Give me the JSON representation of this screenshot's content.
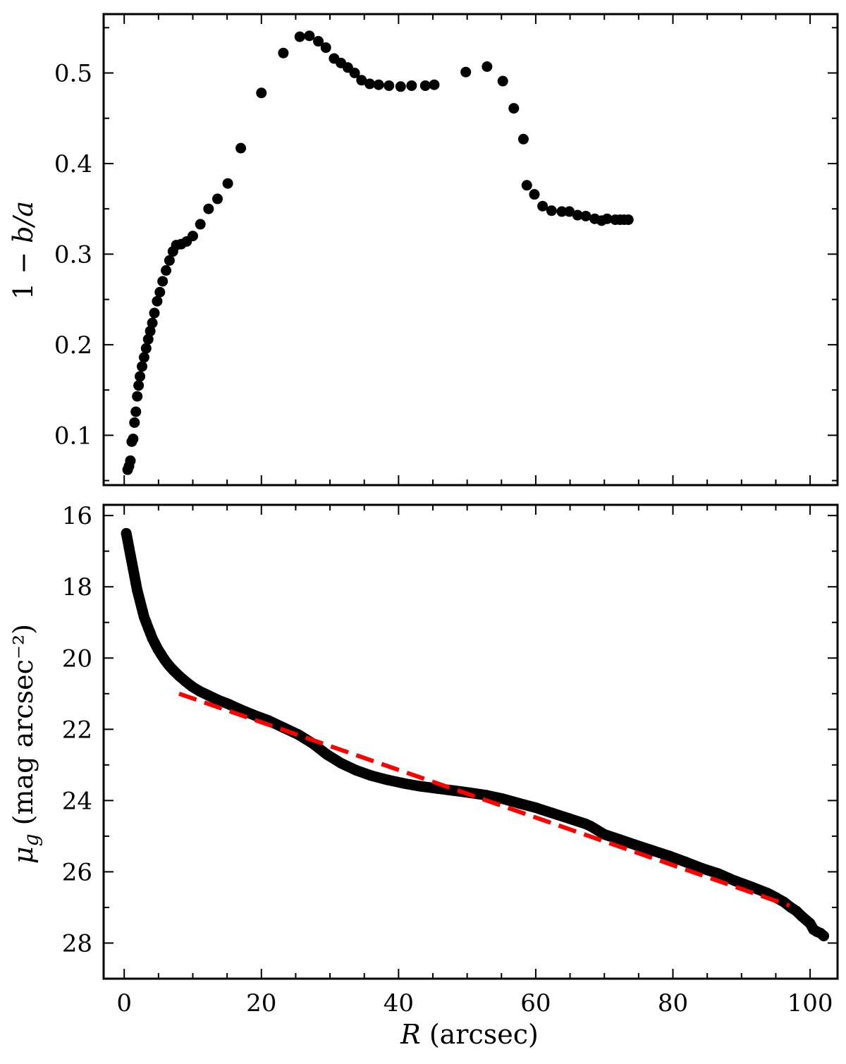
{
  "chart_data": [
    {
      "type": "scatter",
      "xlim": [
        -3,
        104
      ],
      "ylim": [
        0.045,
        0.565
      ],
      "xticks": [
        0,
        20,
        40,
        60,
        80,
        100
      ],
      "yticks": [
        0.1,
        0.2,
        0.3,
        0.4,
        0.5
      ],
      "yticklabels": [
        "0.1",
        "0.2",
        "0.3",
        "0.4",
        "0.5"
      ],
      "ylabel": "1 − b/a",
      "marker_color": "#000000",
      "series": [
        {
          "x": [
            0.5,
            0.7,
            0.9,
            1.1,
            1.3,
            1.5,
            1.7,
            1.9,
            2.1,
            2.3,
            2.6,
            2.9,
            3.2,
            3.5,
            3.8,
            4.1,
            4.4,
            4.8,
            5.2,
            5.6,
            6.1,
            6.6,
            7.1,
            7.6,
            8.3,
            9.1,
            10.0,
            11.1,
            12.3,
            13.6,
            15.1,
            17.0,
            20.0,
            23.2,
            25.6,
            27.0,
            28.3,
            29.4,
            30.6,
            31.6,
            32.6,
            33.6,
            34.6,
            35.8,
            37.1,
            38.6,
            40.3,
            41.9,
            43.9,
            45.2,
            49.8,
            52.9,
            55.2,
            56.8,
            58.2,
            58.7,
            59.8,
            61.0,
            62.3,
            63.8,
            64.9,
            66.1,
            67.3,
            68.6,
            69.6,
            70.4,
            71.6,
            72.3,
            72.9,
            73.5
          ],
          "y": [
            0.062,
            0.066,
            0.072,
            0.093,
            0.096,
            0.114,
            0.126,
            0.143,
            0.155,
            0.165,
            0.176,
            0.186,
            0.196,
            0.206,
            0.215,
            0.224,
            0.235,
            0.248,
            0.258,
            0.27,
            0.282,
            0.293,
            0.303,
            0.31,
            0.311,
            0.314,
            0.32,
            0.333,
            0.35,
            0.361,
            0.378,
            0.417,
            0.478,
            0.522,
            0.54,
            0.541,
            0.535,
            0.528,
            0.516,
            0.511,
            0.506,
            0.5,
            0.492,
            0.488,
            0.487,
            0.486,
            0.485,
            0.486,
            0.486,
            0.487,
            0.501,
            0.507,
            0.491,
            0.461,
            0.427,
            0.376,
            0.366,
            0.353,
            0.348,
            0.347,
            0.347,
            0.343,
            0.342,
            0.339,
            0.337,
            0.339,
            0.338,
            0.338,
            0.338,
            0.338
          ]
        }
      ]
    },
    {
      "type": "scatter",
      "xlim": [
        -3,
        104
      ],
      "ylim": [
        29.0,
        15.7
      ],
      "y_inverted": true,
      "xticks": [
        0,
        20,
        40,
        60,
        80,
        100
      ],
      "xticklabels": [
        "0",
        "20",
        "40",
        "60",
        "80",
        "100"
      ],
      "yticks": [
        16,
        18,
        20,
        22,
        24,
        26,
        28
      ],
      "yticklabels": [
        "16",
        "18",
        "20",
        "22",
        "24",
        "26",
        "28"
      ],
      "xlabel": "R (arcsec)",
      "ylabel": "μg (mag arcsec⁻²)",
      "marker_color": "#000000",
      "series": [
        {
          "x": [
            0.3,
            0.5,
            0.7,
            0.9,
            1.1,
            1.3,
            1.5,
            1.7,
            1.9,
            2.1,
            2.3,
            2.5,
            2.7,
            2.9,
            3.2,
            3.5,
            3.8,
            4.1,
            4.5,
            4.9,
            5.4,
            5.9,
            6.5,
            7.2,
            8.0,
            8.9,
            9.9,
            11.0,
            12.3,
            13.7,
            15.3,
            17.0,
            18.9,
            21.0,
            23.2,
            25.4,
            27.5,
            29.5,
            31.6,
            33.8,
            36.0,
            38.4,
            40.8,
            43.2,
            45.6,
            48.0,
            50.4,
            52.8,
            55.2,
            57.6,
            60.0,
            62.4,
            64.8,
            67.2,
            68.0,
            70.0,
            72.3,
            74.6,
            77.0,
            79.4,
            81.8,
            84.2,
            86.6,
            89.0,
            91.4,
            93.8,
            95.0,
            96.2,
            97.2,
            98.0,
            98.8,
            99.4,
            100.0,
            100.5,
            101.0,
            101.5,
            102.0
          ],
          "y": [
            16.5,
            16.7,
            16.9,
            17.1,
            17.3,
            17.5,
            17.7,
            17.9,
            18.1,
            18.25,
            18.4,
            18.55,
            18.7,
            18.85,
            19.0,
            19.15,
            19.3,
            19.45,
            19.6,
            19.75,
            19.9,
            20.05,
            20.2,
            20.35,
            20.5,
            20.65,
            20.8,
            20.93,
            21.05,
            21.18,
            21.3,
            21.45,
            21.6,
            21.75,
            21.95,
            22.15,
            22.4,
            22.7,
            22.95,
            23.15,
            23.3,
            23.42,
            23.52,
            23.6,
            23.66,
            23.72,
            23.78,
            23.85,
            23.95,
            24.08,
            24.2,
            24.35,
            24.5,
            24.65,
            24.72,
            24.95,
            25.1,
            25.25,
            25.4,
            25.55,
            25.72,
            25.9,
            26.05,
            26.25,
            26.42,
            26.6,
            26.72,
            26.85,
            27.0,
            27.1,
            27.25,
            27.35,
            27.45,
            27.62,
            27.68,
            27.72,
            27.8
          ]
        },
        {
          "type": "line",
          "style": "dashed",
          "color": "#ff0000",
          "x": [
            8,
            97
          ],
          "y": [
            21.0,
            26.95
          ]
        }
      ]
    }
  ]
}
